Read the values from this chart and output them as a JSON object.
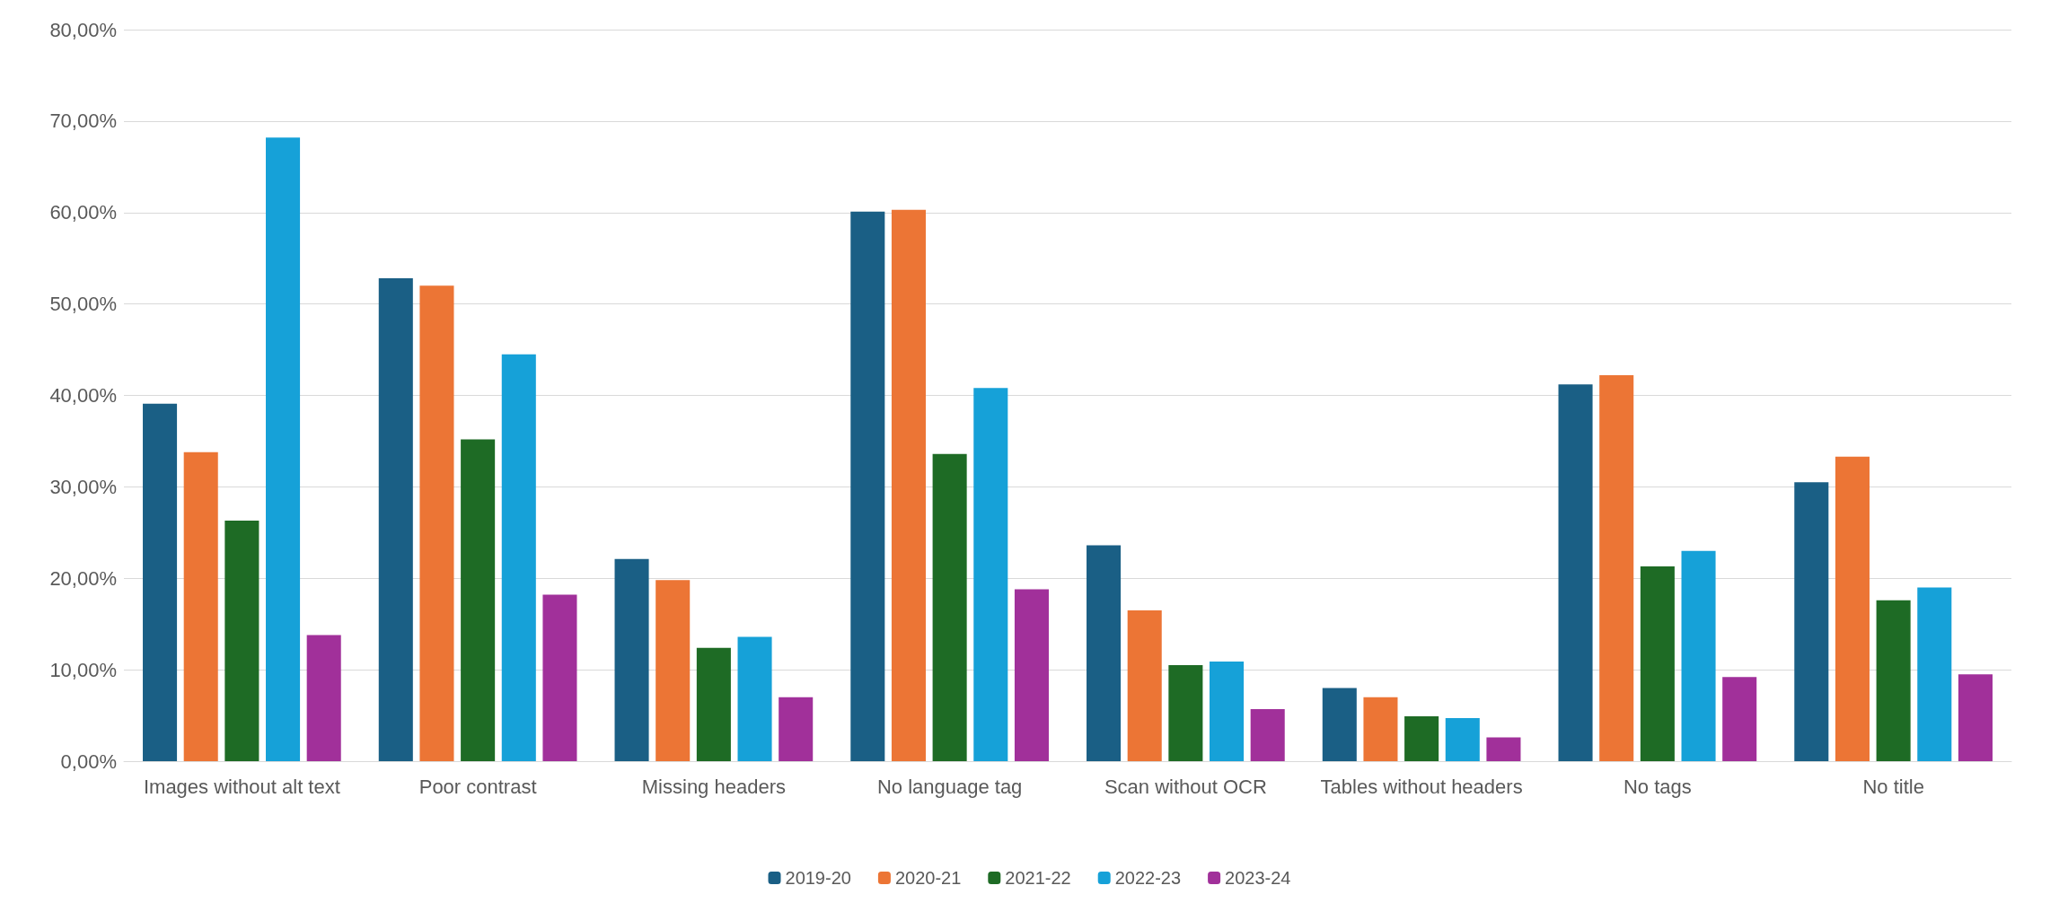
{
  "chart_data": {
    "type": "bar",
    "categories": [
      "Images without alt text",
      "Poor contrast",
      "Missing headers",
      "No language tag",
      "Scan without OCR",
      "Tables without headers",
      "No tags",
      "No title"
    ],
    "series": [
      {
        "name": "2019-20",
        "color": "#1a5f85",
        "values": [
          39.1,
          52.8,
          22.1,
          60.1,
          23.6,
          8.0,
          41.2,
          30.5
        ]
      },
      {
        "name": "2020-21",
        "color": "#ec7535",
        "values": [
          33.8,
          52.0,
          19.8,
          60.3,
          16.5,
          7.0,
          42.2,
          33.3
        ]
      },
      {
        "name": "2021-22",
        "color": "#1e6b25",
        "values": [
          26.3,
          35.2,
          12.4,
          33.6,
          10.5,
          4.9,
          21.3,
          17.6
        ]
      },
      {
        "name": "2022-23",
        "color": "#16a1d8",
        "values": [
          68.2,
          44.5,
          13.6,
          40.8,
          10.9,
          4.7,
          23.0,
          19.0
        ]
      },
      {
        "name": "2023-24",
        "color": "#a1309a",
        "values": [
          13.8,
          18.2,
          7.0,
          18.8,
          5.7,
          2.6,
          9.2,
          9.5
        ]
      }
    ],
    "ylim": [
      0,
      80
    ],
    "yticks": [
      {
        "value": 0,
        "label": "0,00%"
      },
      {
        "value": 10,
        "label": "10,00%"
      },
      {
        "value": 20,
        "label": "20,00%"
      },
      {
        "value": 30,
        "label": "30,00%"
      },
      {
        "value": 40,
        "label": "40,00%"
      },
      {
        "value": 50,
        "label": "50,00%"
      },
      {
        "value": 60,
        "label": "60,00%"
      },
      {
        "value": 70,
        "label": "70,00%"
      },
      {
        "value": 80,
        "label": "80,00%"
      }
    ],
    "grid": "y",
    "legend": "bottom"
  }
}
